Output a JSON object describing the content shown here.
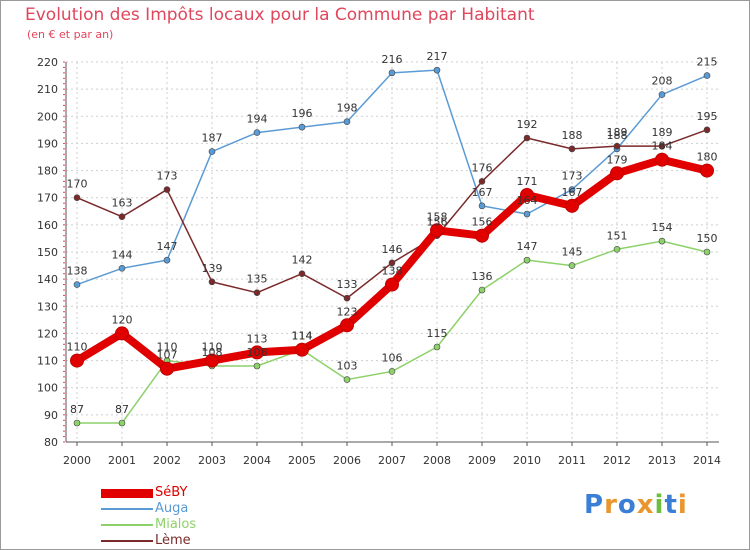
{
  "header": {
    "title": "Evolution des Impôts locaux pour la Commune par Habitant",
    "subtitle": "(en € et par an)"
  },
  "logo": {
    "text": "Proxiti",
    "colors": [
      "#3a7fd5",
      "#e8962d",
      "#3a7fd5",
      "#e8962d",
      "#6cbf3c",
      "#3a7fd5",
      "#e8962d"
    ]
  },
  "chart_data": {
    "type": "line",
    "title": "Evolution des Impôts locaux pour la Commune par Habitant",
    "subtitle": "(en € et par an)",
    "xlabel": "",
    "ylabel": "",
    "ylim": [
      80,
      220
    ],
    "yticks": [
      80,
      90,
      100,
      110,
      120,
      130,
      140,
      150,
      160,
      170,
      180,
      190,
      200,
      210,
      220
    ],
    "grid": true,
    "legend_position": "bottom-left",
    "categories": [
      "2000",
      "2001",
      "2002",
      "2003",
      "2004",
      "2005",
      "2006",
      "2007",
      "2008",
      "2009",
      "2010",
      "2011",
      "2012",
      "2013",
      "2014"
    ],
    "series": [
      {
        "name": "SéBY",
        "color": "#e00000",
        "emphasis": true,
        "values": [
          110,
          120,
          107,
          110,
          113,
          114,
          123,
          138,
          158,
          156,
          171,
          167,
          179,
          184,
          180
        ],
        "labels": [
          "110",
          "120",
          "107",
          "110",
          "113",
          "114",
          "123",
          "138",
          "158",
          "156",
          "171",
          "167",
          "179",
          "184",
          "180"
        ]
      },
      {
        "name": "Auga",
        "color": "#5b9bd5",
        "values": [
          138,
          144,
          147,
          187,
          194,
          196,
          198,
          216,
          217,
          167,
          164,
          173,
          188,
          208,
          215
        ],
        "labels": [
          "138",
          "144",
          "147",
          "187",
          "194",
          "196",
          "198",
          "216",
          "217",
          "167",
          "164",
          "173",
          "188",
          "208",
          "215"
        ]
      },
      {
        "name": "Mialos",
        "color": "#8dd16a",
        "values": [
          87,
          87,
          110,
          108,
          108,
          114,
          103,
          106,
          115,
          136,
          147,
          145,
          151,
          154,
          150
        ],
        "labels": [
          "87",
          "87",
          "110",
          "108",
          "108",
          "114",
          "103",
          "106",
          "115",
          "136",
          "147",
          "145",
          "151",
          "154",
          "150"
        ]
      },
      {
        "name": "Lème",
        "color": "#7a2a2a",
        "values": [
          170,
          163,
          173,
          139,
          135,
          142,
          133,
          146,
          156,
          176,
          192,
          188,
          189,
          189,
          195
        ],
        "labels": [
          "170",
          "163",
          "173",
          "139",
          "135",
          "142",
          "133",
          "146",
          "156",
          "176",
          "192",
          "188",
          "189",
          "189",
          "195"
        ]
      }
    ]
  }
}
